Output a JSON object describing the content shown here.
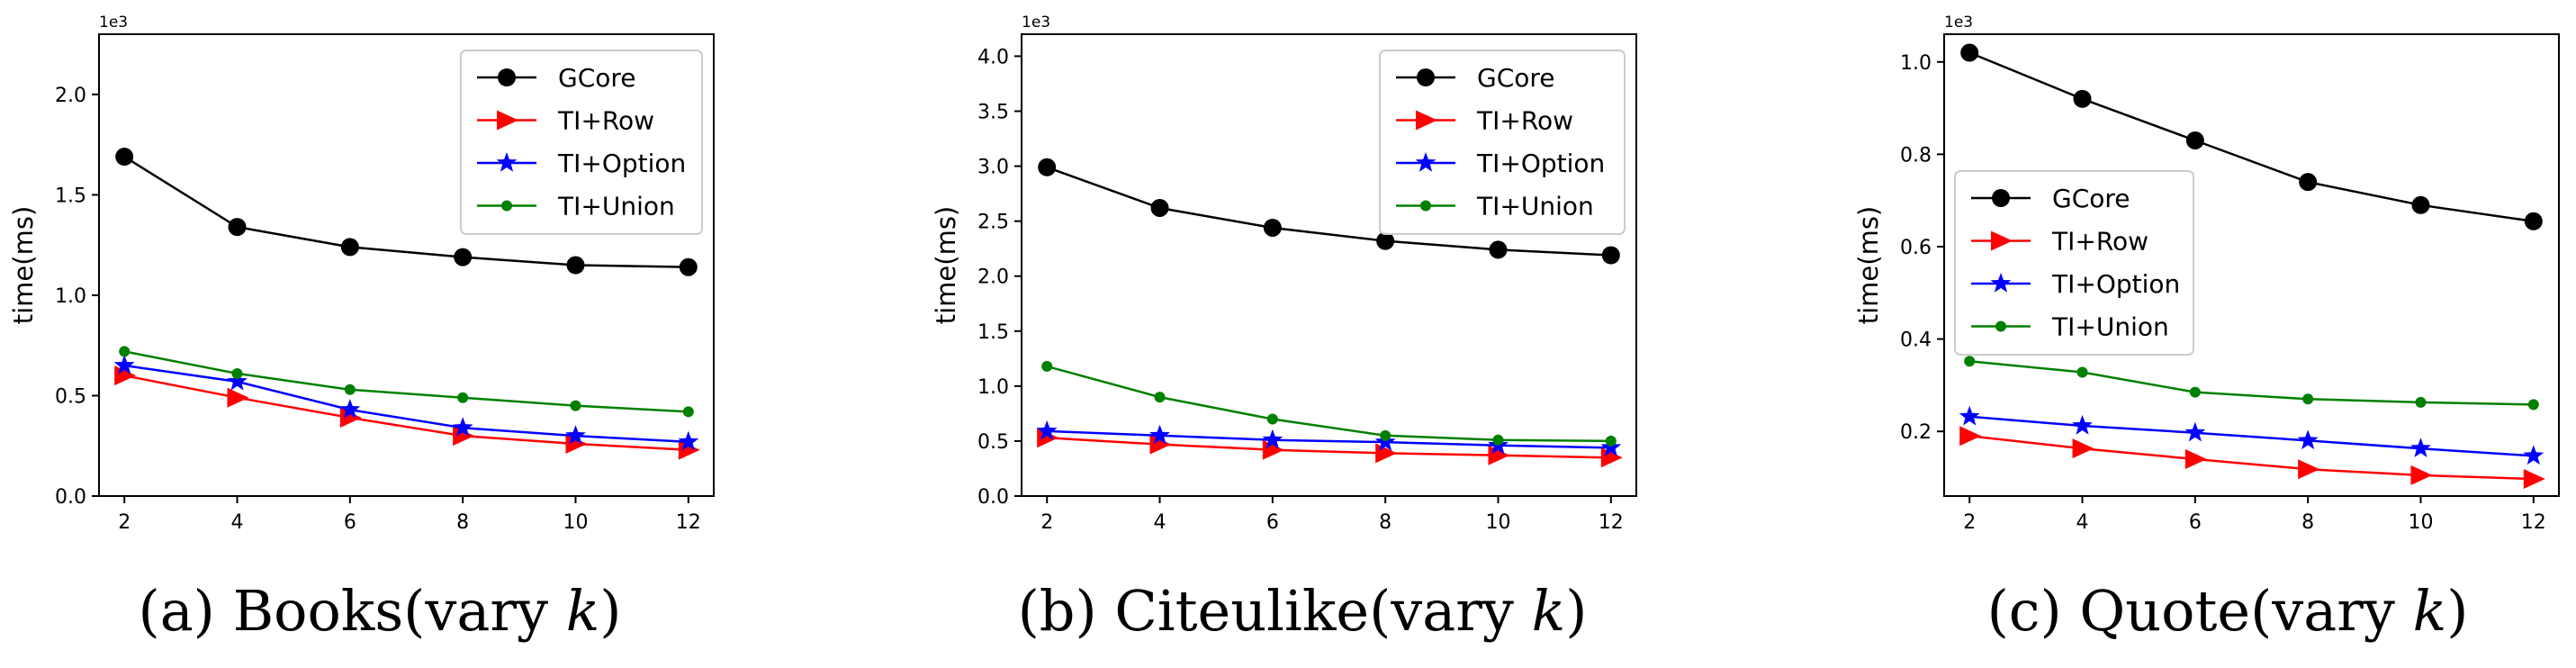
{
  "chart_data": [
    {
      "type": "line",
      "caption": {
        "prefix": "(a)",
        "name": "Books(vary ",
        "var": "k",
        "suffix": ")"
      },
      "ylabel": "time(ms)",
      "xlabel": "",
      "multiplier": "1e3",
      "xlim": [
        1.55,
        12.45
      ],
      "ylim": [
        0,
        2.3
      ],
      "x": [
        2,
        4,
        6,
        8,
        10,
        12
      ],
      "xticks": [
        "2",
        "4",
        "6",
        "8",
        "10",
        "12"
      ],
      "yticks": [
        0.0,
        0.5,
        1.0,
        1.5,
        2.0
      ],
      "ytick_labels": [
        "0.0",
        "0.5",
        "1.0",
        "1.5",
        "2.0"
      ],
      "legend_position": "top-right",
      "series": [
        {
          "name": "GCore",
          "color": "#000000",
          "marker": "circle",
          "values": [
            1.69,
            1.34,
            1.24,
            1.19,
            1.15,
            1.14
          ]
        },
        {
          "name": "TI+Row",
          "color": "#ff0000",
          "marker": "triangle-right",
          "values": [
            0.6,
            0.49,
            0.39,
            0.3,
            0.26,
            0.23
          ]
        },
        {
          "name": "TI+Option",
          "color": "#0000ff",
          "marker": "star",
          "values": [
            0.65,
            0.57,
            0.43,
            0.34,
            0.3,
            0.27
          ]
        },
        {
          "name": "TI+Union",
          "color": "#008000",
          "marker": "dot",
          "values": [
            0.72,
            0.61,
            0.53,
            0.49,
            0.45,
            0.42
          ]
        }
      ]
    },
    {
      "type": "line",
      "caption": {
        "prefix": "(b)",
        "name": "Citeulike(vary ",
        "var": "k",
        "suffix": ")"
      },
      "ylabel": "time(ms)",
      "xlabel": "",
      "multiplier": "1e3",
      "xlim": [
        1.55,
        12.45
      ],
      "ylim": [
        0,
        4.2
      ],
      "x": [
        2,
        4,
        6,
        8,
        10,
        12
      ],
      "xticks": [
        "2",
        "4",
        "6",
        "8",
        "10",
        "12"
      ],
      "yticks": [
        0.0,
        0.5,
        1.0,
        1.5,
        2.0,
        2.5,
        3.0,
        3.5,
        4.0
      ],
      "ytick_labels": [
        "0.0",
        "0.5",
        "1.0",
        "1.5",
        "2.0",
        "2.5",
        "3.0",
        "3.5",
        "4.0"
      ],
      "legend_position": "top-right",
      "series": [
        {
          "name": "GCore",
          "color": "#000000",
          "marker": "circle",
          "values": [
            2.99,
            2.62,
            2.44,
            2.32,
            2.24,
            2.19
          ]
        },
        {
          "name": "TI+Row",
          "color": "#ff0000",
          "marker": "triangle-right",
          "values": [
            0.53,
            0.47,
            0.42,
            0.39,
            0.37,
            0.35
          ]
        },
        {
          "name": "TI+Option",
          "color": "#0000ff",
          "marker": "star",
          "values": [
            0.59,
            0.55,
            0.51,
            0.49,
            0.46,
            0.44
          ]
        },
        {
          "name": "TI+Union",
          "color": "#008000",
          "marker": "dot",
          "values": [
            1.18,
            0.9,
            0.7,
            0.55,
            0.51,
            0.5
          ]
        }
      ]
    },
    {
      "type": "line",
      "caption": {
        "prefix": "(c)",
        "name": "Quote(vary ",
        "var": "k",
        "suffix": ")"
      },
      "ylabel": "time(ms)",
      "xlabel": "",
      "multiplier": "1e3",
      "xlim": [
        1.55,
        12.45
      ],
      "ylim": [
        0.06,
        1.06
      ],
      "x": [
        2,
        4,
        6,
        8,
        10,
        12
      ],
      "xticks": [
        "2",
        "4",
        "6",
        "8",
        "10",
        "12"
      ],
      "yticks": [
        0.2,
        0.4,
        0.6,
        0.8,
        1.0
      ],
      "ytick_labels": [
        "0.2",
        "0.4",
        "0.6",
        "0.8",
        "1.0"
      ],
      "legend_position": "center-left",
      "series": [
        {
          "name": "GCore",
          "color": "#000000",
          "marker": "circle",
          "values": [
            1.02,
            0.92,
            0.83,
            0.74,
            0.69,
            0.655
          ]
        },
        {
          "name": "TI+Row",
          "color": "#ff0000",
          "marker": "triangle-right",
          "values": [
            0.19,
            0.163,
            0.14,
            0.118,
            0.105,
            0.097
          ]
        },
        {
          "name": "TI+Option",
          "color": "#0000ff",
          "marker": "star",
          "values": [
            0.232,
            0.212,
            0.197,
            0.18,
            0.163,
            0.147
          ]
        },
        {
          "name": "TI+Union",
          "color": "#008000",
          "marker": "dot",
          "values": [
            0.352,
            0.328,
            0.285,
            0.27,
            0.263,
            0.258
          ]
        }
      ]
    }
  ]
}
